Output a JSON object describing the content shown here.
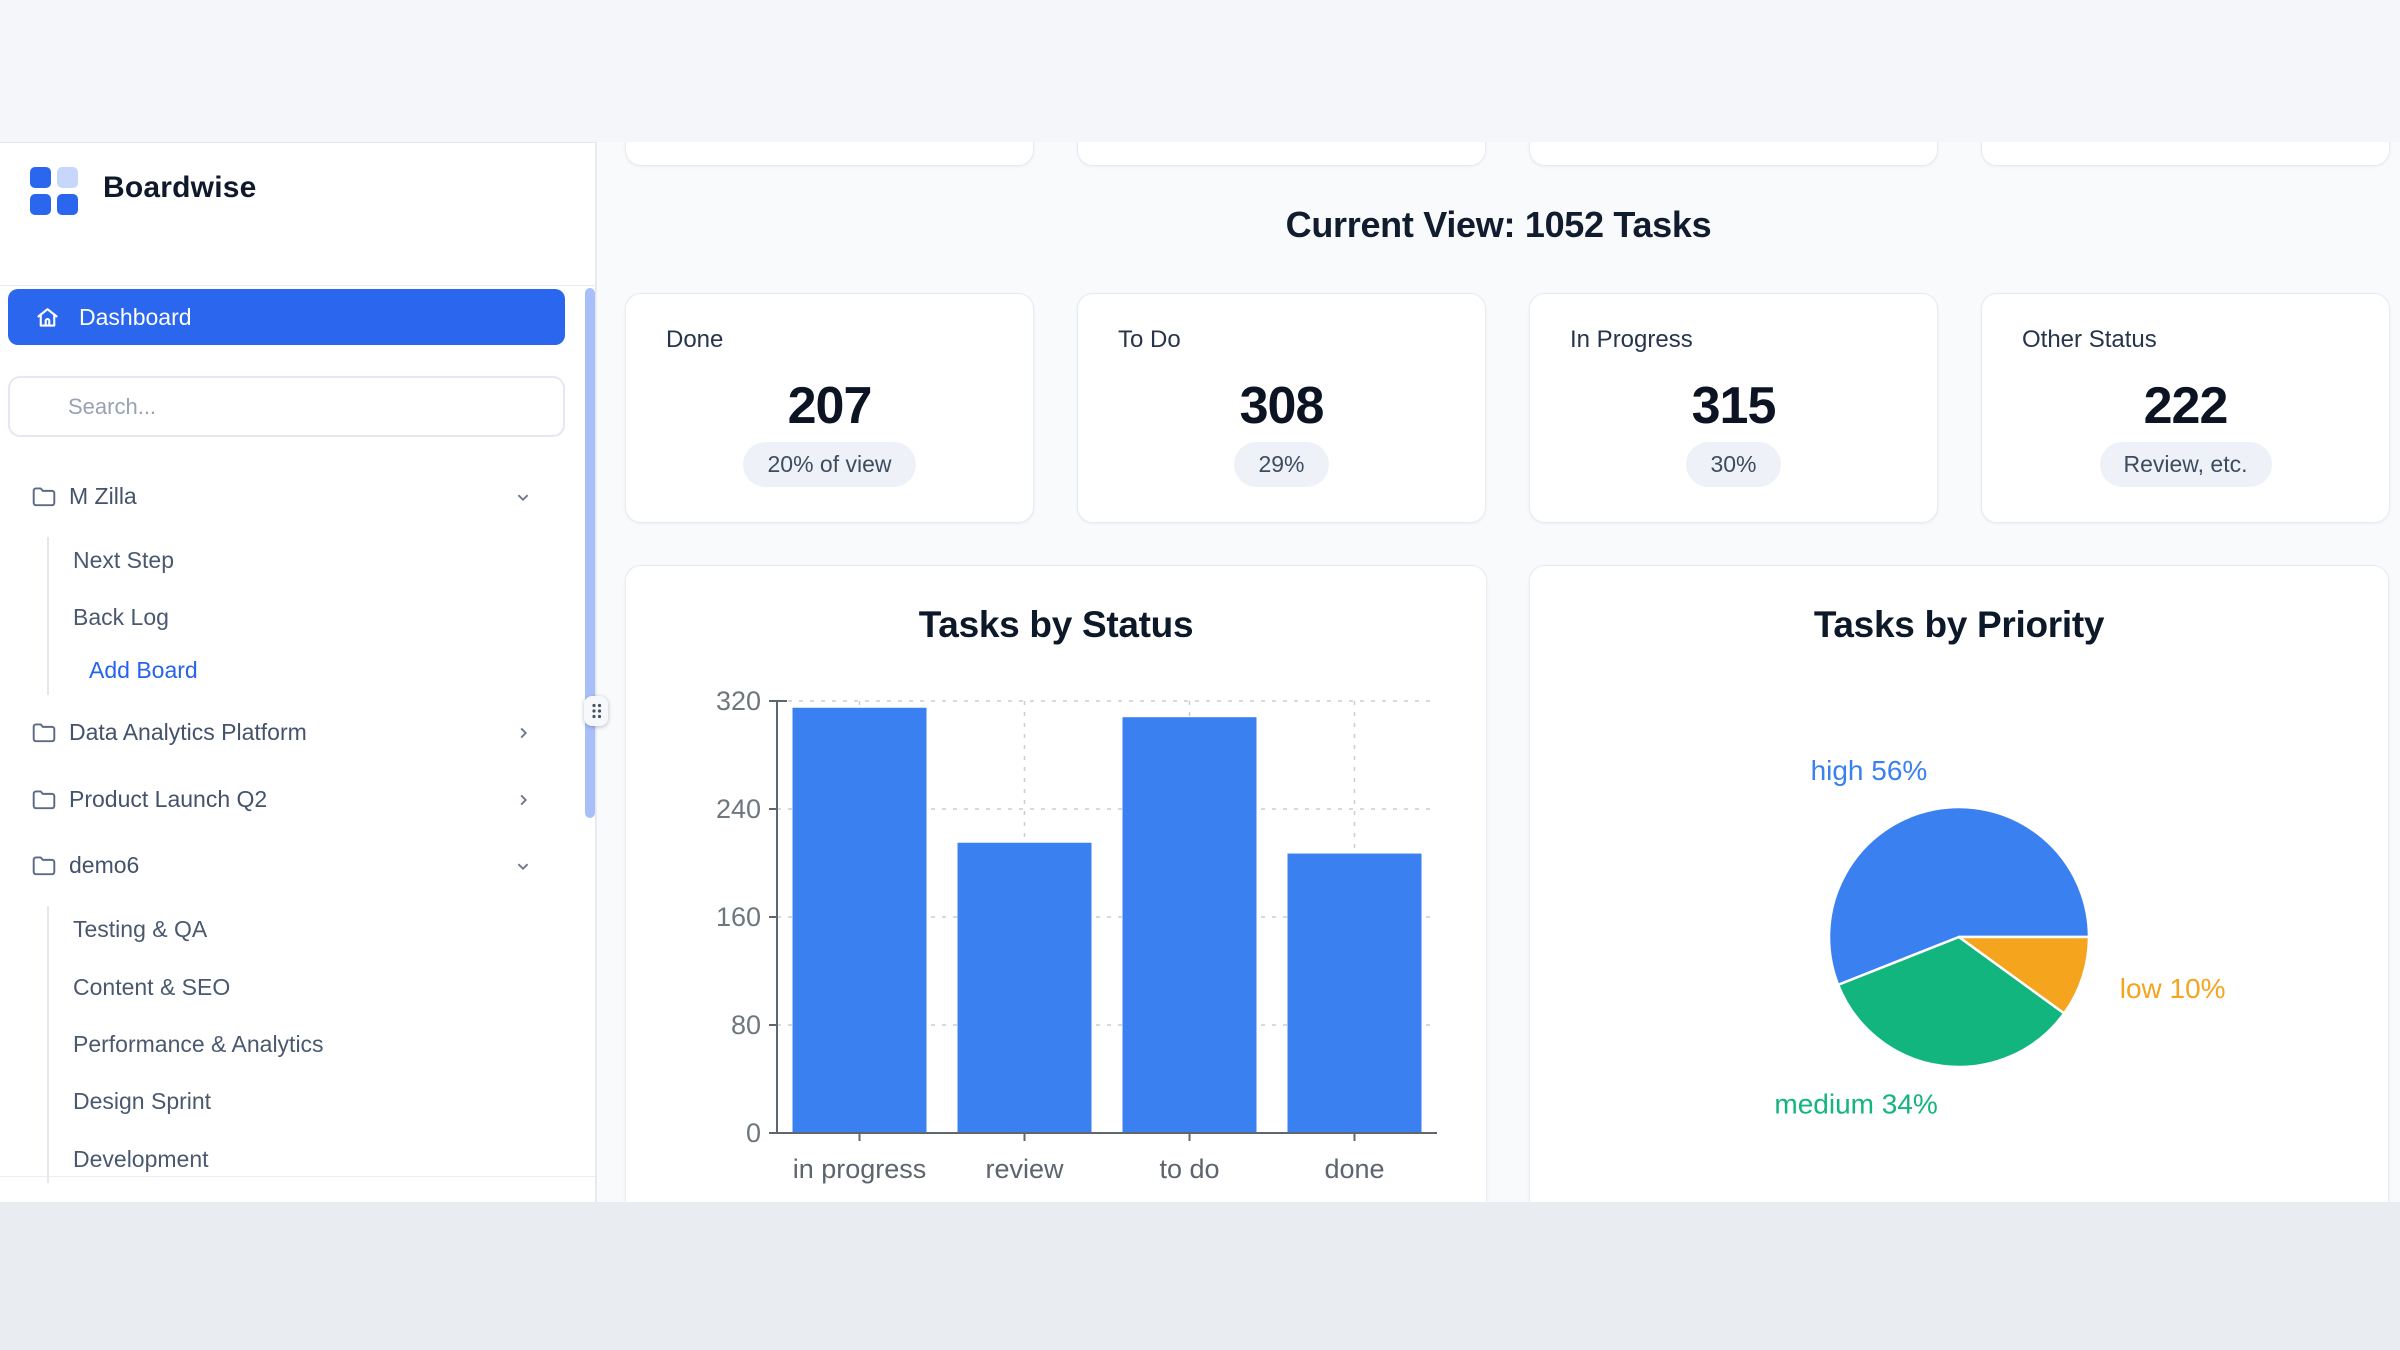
{
  "brand": {
    "name": "Boardwise"
  },
  "nav": {
    "dashboard_label": "Dashboard"
  },
  "search": {
    "placeholder": "Search..."
  },
  "sidebar": {
    "projects": [
      {
        "label": "M Zilla",
        "expanded": true,
        "children": [
          "Next Step",
          "Back Log"
        ],
        "action": "Add Board"
      },
      {
        "label": "Data Analytics Platform",
        "expanded": false
      },
      {
        "label": "Product Launch Q2",
        "expanded": false
      },
      {
        "label": "demo6",
        "expanded": true,
        "children": [
          "Testing & QA",
          "Content & SEO",
          "Performance & Analytics",
          "Design Sprint",
          "Development"
        ]
      }
    ]
  },
  "header": {
    "title": "Current View: 1052 Tasks"
  },
  "stats": [
    {
      "label": "Done",
      "value": "207",
      "badge": "20% of view"
    },
    {
      "label": "To Do",
      "value": "308",
      "badge": "29%"
    },
    {
      "label": "In Progress",
      "value": "315",
      "badge": "30%"
    },
    {
      "label": "Other Status",
      "value": "222",
      "badge": "Review, etc."
    }
  ],
  "chart_data": [
    {
      "type": "bar",
      "title": "Tasks by Status",
      "categories": [
        "in progress",
        "review",
        "to do",
        "done"
      ],
      "values": [
        315,
        215,
        308,
        207
      ],
      "xlabel": "",
      "ylabel": "",
      "ylim": [
        0,
        320
      ],
      "yticks": [
        0,
        80,
        160,
        240,
        320
      ],
      "grid": true,
      "bar_color": "#3b80f0"
    },
    {
      "type": "pie",
      "title": "Tasks by Priority",
      "labels": [
        "high",
        "medium",
        "low"
      ],
      "values": [
        56,
        34,
        10
      ],
      "colors": [
        "#3b80f0",
        "#13b57e",
        "#f4a41d"
      ],
      "label_format": "{label} {value}%",
      "start_angle": 0,
      "direction": "counterclockwise"
    }
  ],
  "colors": {
    "accent": "#2a66ee",
    "link": "#2563eb",
    "bar_blue": "#3b80f0",
    "pie_green": "#13b57e",
    "pie_orange": "#f4a41d",
    "logo_light_blue": "#c7d7fb",
    "main_bg": "#f8fafc",
    "badge_bg": "#eef2f8"
  }
}
